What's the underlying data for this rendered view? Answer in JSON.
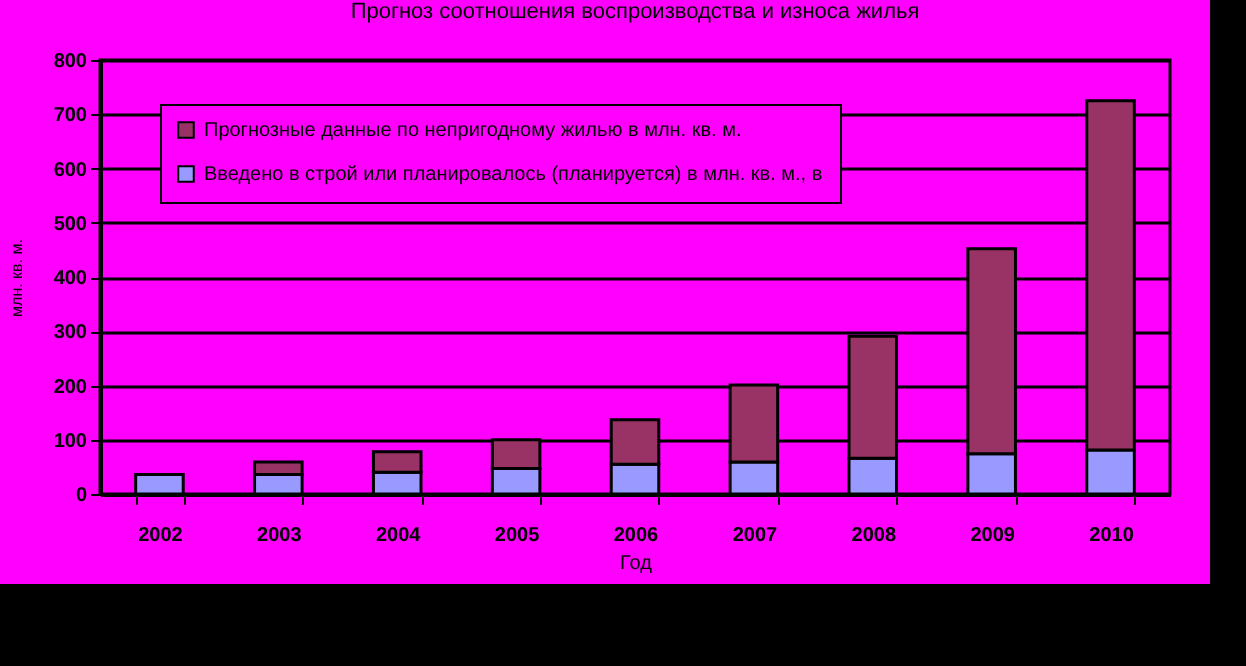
{
  "chart_data": {
    "type": "bar",
    "title": "Прогноз соотношения воспроизводства и износа жилья",
    "xlabel": "Год",
    "ylabel": "млн. кв. м.",
    "categories": [
      "2002",
      "2003",
      "2004",
      "2005",
      "2006",
      "2007",
      "2008",
      "2009",
      "2010"
    ],
    "stacked": true,
    "series": [
      {
        "name": "Введено в строй или планировалось (планируется) в млн. кв. м., в",
        "color": "#9999ff",
        "values": [
          36,
          36,
          40,
          47,
          55,
          59,
          66,
          74,
          81
        ]
      },
      {
        "name": "Прогнозные данные по непригодному жилью в млн. кв. м.",
        "color": "#993366",
        "values": [
          null,
          23,
          38,
          53,
          82,
          142,
          225,
          378,
          644
        ]
      }
    ],
    "ylim": [
      0,
      800
    ],
    "yticks": [
      0,
      100,
      200,
      300,
      400,
      500,
      600,
      700,
      800
    ],
    "grid": "y",
    "legend": "top left"
  }
}
